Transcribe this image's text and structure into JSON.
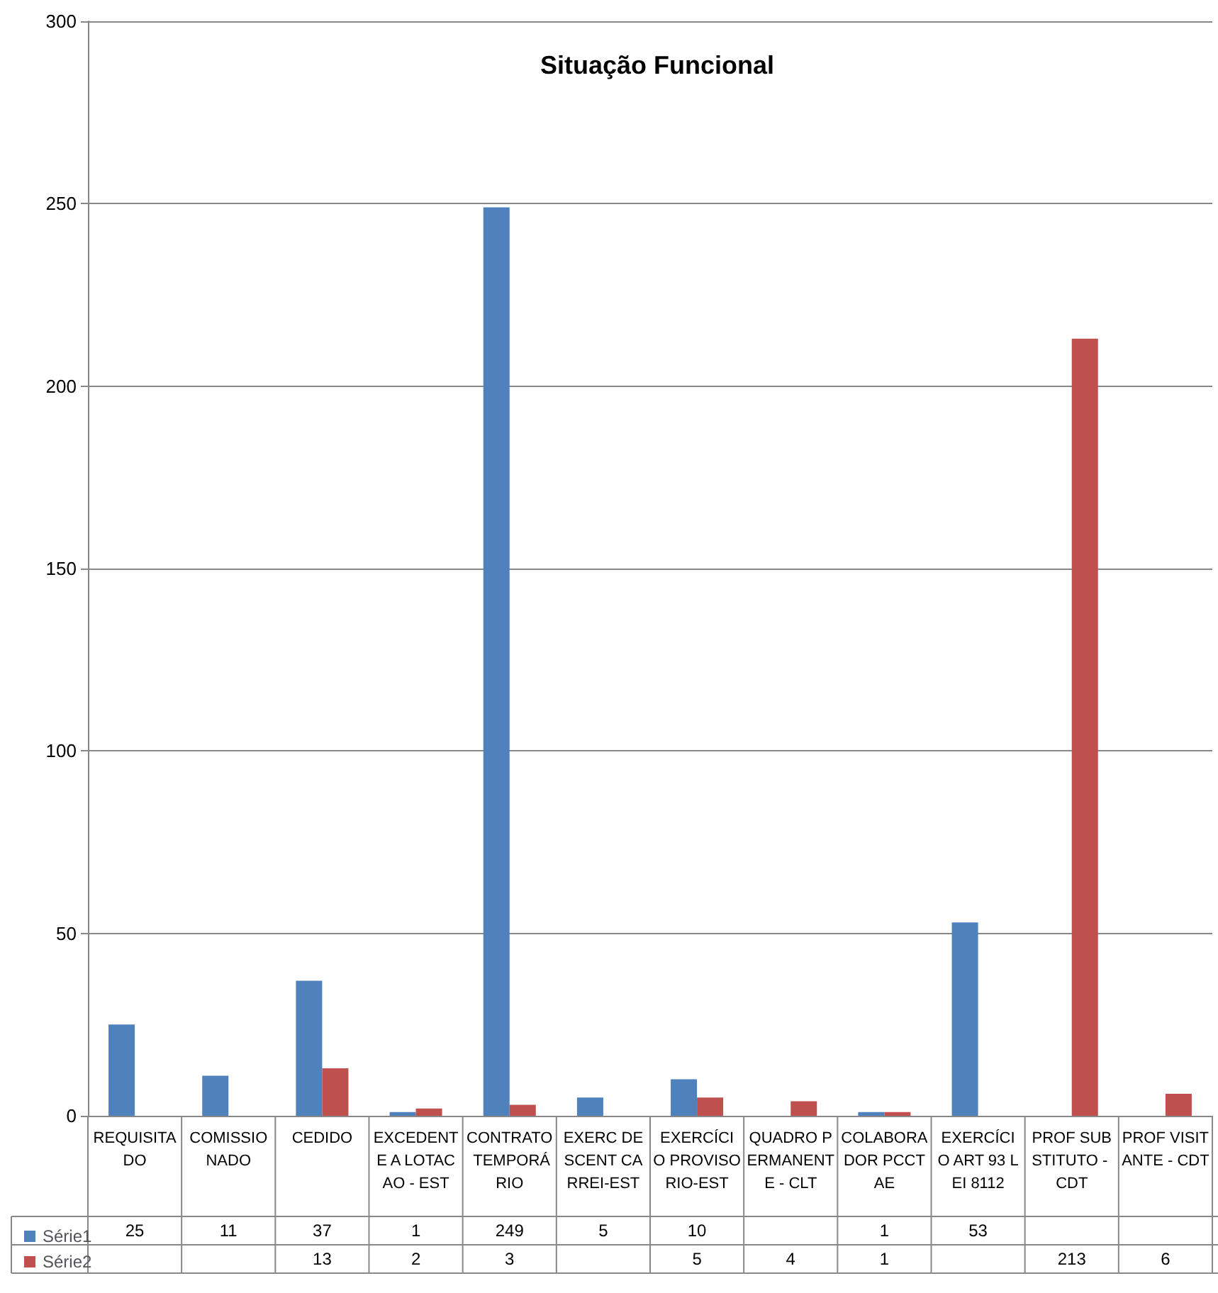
{
  "chart_data": {
    "type": "bar",
    "title": "Situação Funcional",
    "categories": [
      "REQUISITADO",
      "COMISSIONADO",
      "CEDIDO",
      "EXCEDENTE A LOTACAO - EST",
      "CONTRATO TEMPORÁRIO",
      "EXERC DESCENT CARREI-EST",
      "EXERCÍCIO PROVISORIO-EST",
      "QUADRO PERMANENTE - CLT",
      "COLABORADOR PCCTAE",
      "EXERCÍCIO ART 93 LEI 8112",
      "PROF SUBSTITUTO - CDT",
      "PROF VISITANTE - CDT"
    ],
    "series": [
      {
        "name": "Série1",
        "color": "#4f81bd",
        "values": [
          25,
          11,
          37,
          1,
          249,
          5,
          10,
          null,
          1,
          53,
          null,
          null
        ]
      },
      {
        "name": "Série2",
        "color": "#c0504d",
        "values": [
          null,
          null,
          13,
          2,
          3,
          null,
          5,
          4,
          1,
          null,
          213,
          6
        ]
      }
    ],
    "ylim": [
      0,
      300
    ],
    "yticks": [
      0,
      50,
      100,
      150,
      200,
      250,
      300
    ],
    "grid": "y",
    "legend": "bottom left",
    "data_labels": true
  }
}
